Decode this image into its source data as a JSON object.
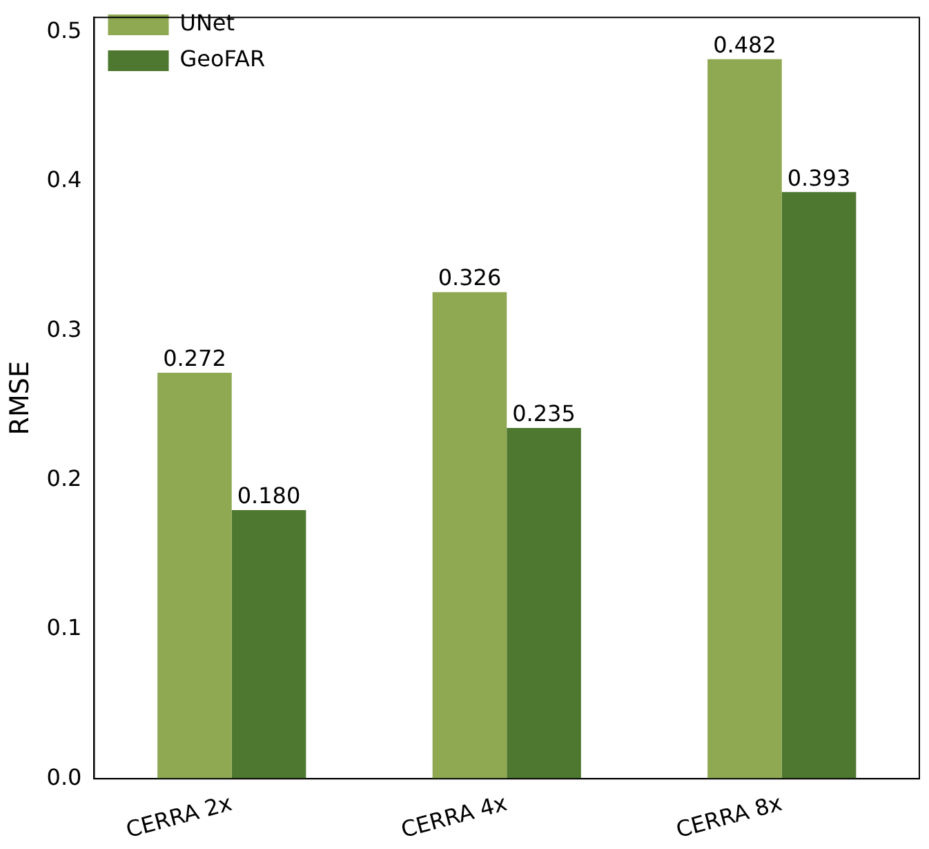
{
  "chart_data": {
    "type": "bar",
    "ylabel": "RMSE",
    "categories": [
      "CERRA 2x",
      "CERRA 4x",
      "CERRA 8x"
    ],
    "series": [
      {
        "name": "UNet",
        "color": "#8fa852",
        "values": [
          0.272,
          0.326,
          0.482
        ]
      },
      {
        "name": "GeoFAR",
        "color": "#4e772f",
        "values": [
          0.18,
          0.235,
          0.393
        ]
      }
    ],
    "value_labels": [
      [
        "0.272",
        "0.326",
        "0.482"
      ],
      [
        "0.180",
        "0.235",
        "0.393"
      ]
    ],
    "ylim": [
      0,
      0.51
    ],
    "yticks": [
      {
        "value": 0,
        "label": "0.0"
      },
      {
        "value": 0.1,
        "label": "0.1"
      },
      {
        "value": 0.2,
        "label": "0.2"
      },
      {
        "value": 0.3,
        "label": "0.3"
      },
      {
        "value": 0.4,
        "label": "0.4"
      },
      {
        "value": 0.5,
        "label": "0.5"
      }
    ],
    "grid": false,
    "legend": "top left"
  }
}
